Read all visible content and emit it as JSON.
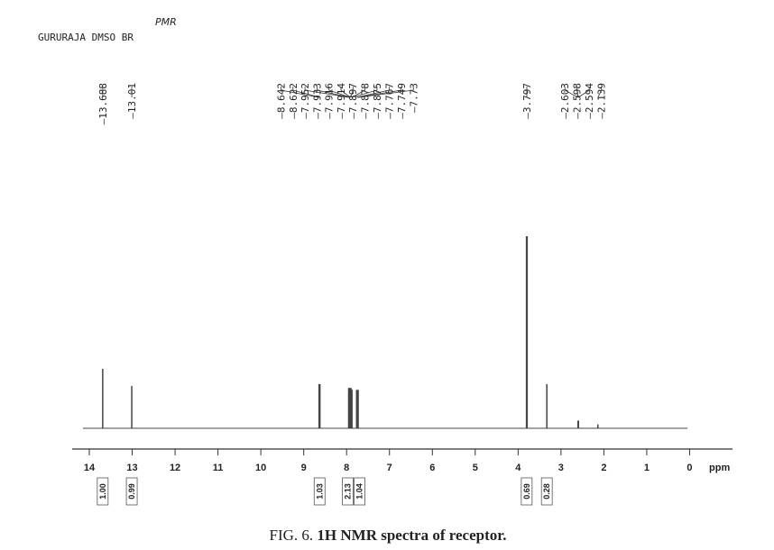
{
  "chart_data": {
    "type": "nmr",
    "header": "GURURAJA DMSO BR",
    "note": "PMR",
    "caption": "FIG. 6.",
    "caption_bold": "1H NMR spectra of receptor.",
    "x_label": "ppm",
    "xlim": [
      14.4,
      -1
    ],
    "xticks": [
      14,
      13,
      12,
      11,
      10,
      9,
      8,
      7,
      6,
      5,
      4,
      3,
      2,
      1,
      0
    ],
    "ylim": [
      0,
      100
    ],
    "color": "#444444",
    "x": [
      13.688,
      13.01,
      8.642,
      8.622,
      7.952,
      7.933,
      7.916,
      7.914,
      7.897,
      7.878,
      7.875,
      7.767,
      7.749,
      7.73,
      3.797,
      2.603,
      2.598,
      2.594,
      2.139
    ],
    "values": [
      31,
      22,
      23,
      23,
      21,
      21,
      21,
      20,
      21,
      20,
      20,
      20,
      20,
      20,
      100,
      4,
      4,
      4,
      2
    ],
    "unlabeled_peaks": {
      "x": [
        3.33
      ],
      "values": [
        23
      ]
    },
    "integral_x": [
      13.688,
      13.01,
      8.63,
      7.92,
      7.75,
      3.8,
      3.33
    ],
    "integrals": [
      {
        "value": 1.0,
        "label": "1.00"
      },
      {
        "value": 0.99,
        "label": "0.99"
      },
      {
        "value": 1.03,
        "label": "1.03"
      },
      {
        "value": 2.13,
        "label": "2.13"
      },
      {
        "value": 1.04,
        "label": "1.04"
      },
      {
        "value": 0.69,
        "label": "0.69"
      },
      {
        "value": 0.28,
        "label": "0.28"
      }
    ]
  }
}
